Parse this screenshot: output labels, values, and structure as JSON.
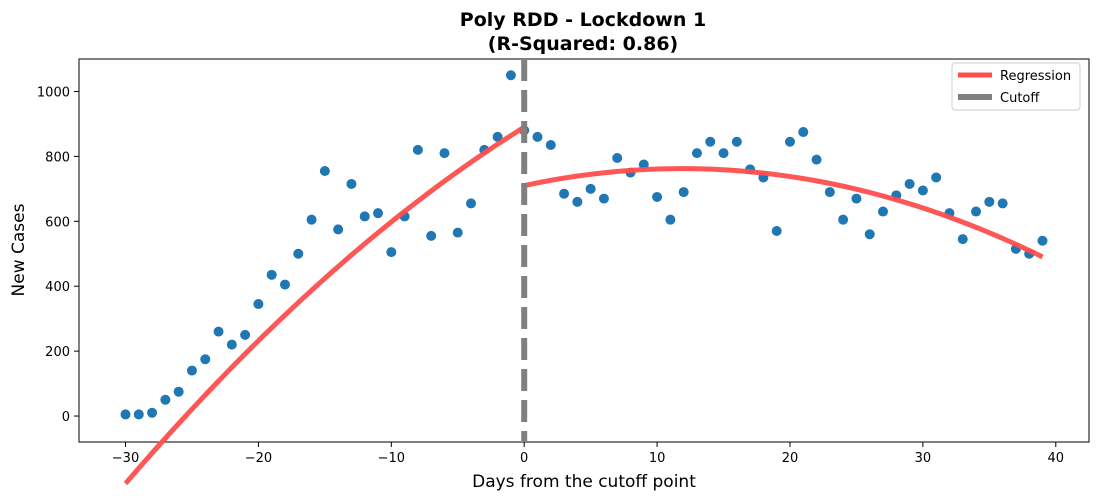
{
  "chart_data": {
    "type": "scatter",
    "title": "Poly RDD - Lockdown 1",
    "subtitle": "(R-Squared: 0.86)",
    "xlabel": "Days from the cutoff point",
    "ylabel": "New Cases",
    "xlim": [
      -33.5,
      42.5
    ],
    "ylim": [
      -80,
      1100
    ],
    "xticks": [
      -30,
      -20,
      -10,
      0,
      10,
      20,
      30,
      40
    ],
    "yticks": [
      0,
      200,
      400,
      600,
      800,
      1000
    ],
    "xtick_labels": [
      "−30",
      "−20",
      "−10",
      "0",
      "10",
      "20",
      "30",
      "40"
    ],
    "ytick_labels": [
      "0",
      "200",
      "400",
      "600",
      "800",
      "1000"
    ],
    "grid": false,
    "legend_position": "top-right",
    "legend": [
      {
        "label": "Regression",
        "color": "#ff4d4d",
        "style": "solid"
      },
      {
        "label": "Cutoff",
        "color": "#808080",
        "style": "solid"
      }
    ],
    "cutoff_x": 0,
    "scatter_color": "#1f77b4",
    "points": [
      [
        -30,
        5
      ],
      [
        -29,
        5
      ],
      [
        -28,
        10
      ],
      [
        -27,
        50
      ],
      [
        -26,
        75
      ],
      [
        -25,
        140
      ],
      [
        -24,
        175
      ],
      [
        -23,
        260
      ],
      [
        -22,
        220
      ],
      [
        -21,
        250
      ],
      [
        -20,
        345
      ],
      [
        -19,
        435
      ],
      [
        -18,
        405
      ],
      [
        -17,
        500
      ],
      [
        -16,
        605
      ],
      [
        -15,
        755
      ],
      [
        -14,
        575
      ],
      [
        -13,
        715
      ],
      [
        -12,
        615
      ],
      [
        -11,
        625
      ],
      [
        -10,
        505
      ],
      [
        -9,
        615
      ],
      [
        -8,
        820
      ],
      [
        -7,
        555
      ],
      [
        -6,
        810
      ],
      [
        -5,
        565
      ],
      [
        -4,
        655
      ],
      [
        -3,
        820
      ],
      [
        -2,
        860
      ],
      [
        -1,
        1050
      ],
      [
        0,
        880
      ],
      [
        1,
        860
      ],
      [
        2,
        835
      ],
      [
        3,
        685
      ],
      [
        4,
        660
      ],
      [
        5,
        700
      ],
      [
        6,
        670
      ],
      [
        7,
        795
      ],
      [
        8,
        750
      ],
      [
        9,
        775
      ],
      [
        10,
        675
      ],
      [
        11,
        605
      ],
      [
        12,
        690
      ],
      [
        13,
        810
      ],
      [
        14,
        845
      ],
      [
        15,
        810
      ],
      [
        16,
        845
      ],
      [
        17,
        760
      ],
      [
        18,
        735
      ],
      [
        19,
        570
      ],
      [
        20,
        845
      ],
      [
        21,
        875
      ],
      [
        22,
        790
      ],
      [
        23,
        690
      ],
      [
        24,
        605
      ],
      [
        25,
        670
      ],
      [
        26,
        560
      ],
      [
        27,
        630
      ],
      [
        28,
        680
      ],
      [
        29,
        715
      ],
      [
        30,
        695
      ],
      [
        31,
        735
      ],
      [
        32,
        625
      ],
      [
        33,
        545
      ],
      [
        34,
        630
      ],
      [
        35,
        660
      ],
      [
        36,
        655
      ],
      [
        37,
        515
      ],
      [
        38,
        500
      ],
      [
        39,
        540
      ]
    ],
    "regression_left": {
      "x_range": [
        -30,
        0
      ],
      "coeffs": [
        890,
        25.5,
        -0.37
      ]
    },
    "regression_right": {
      "x_range": [
        0,
        39
      ],
      "coeffs": [
        710,
        8.8,
        -0.37
      ]
    },
    "regression_color": "#ff4d4d",
    "cutoff_color": "#808080"
  }
}
